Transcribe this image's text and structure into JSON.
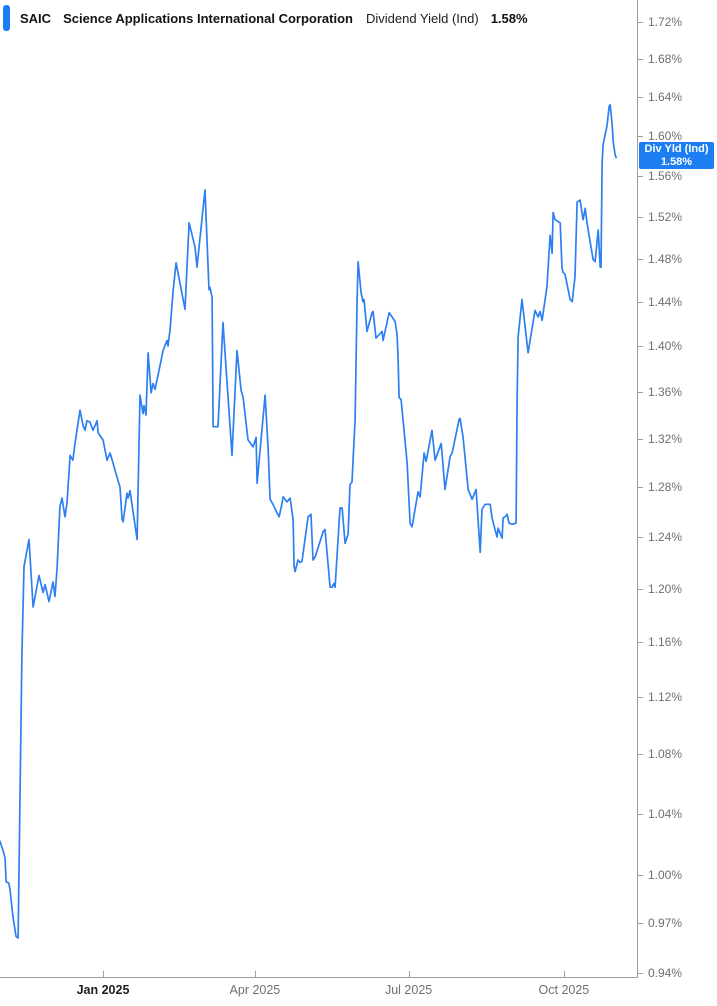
{
  "header": {
    "ticker": "SAIC",
    "company": "Science Applications International Corporation",
    "metric": "Dividend Yield (Ind)",
    "value": "1.58%"
  },
  "badge": {
    "line1": "Div Yld (Ind)",
    "line2": "1.58%",
    "value": 1.58
  },
  "colors": {
    "line": "#2e7ff2",
    "badge": "#1d7ef2",
    "accent_bar": "#1d7ef2",
    "axis": "#9e9e9e",
    "tick_label": "#6f6f6f",
    "emphasis_label": "#1c1e21"
  },
  "chart_data": {
    "type": "line",
    "title": "SAIC Dividend Yield (Ind)",
    "grid": false,
    "legend_position": "none",
    "y_axis": {
      "side": "right",
      "scale": "log",
      "range": [
        0.9375,
        1.7443
      ],
      "unit": "%",
      "tick_values": [
        1.72,
        1.68,
        1.64,
        1.6,
        1.56,
        1.52,
        1.48,
        1.44,
        1.4,
        1.36,
        1.32,
        1.28,
        1.24,
        1.2,
        1.16,
        1.12,
        1.08,
        1.04,
        1.0,
        0.97,
        0.94
      ],
      "tick_labels": [
        "1.72%",
        "1.68%",
        "1.64%",
        "1.60%",
        "1.56%",
        "1.52%",
        "1.48%",
        "1.44%",
        "1.40%",
        "1.36%",
        "1.32%",
        "1.28%",
        "1.24%",
        "1.20%",
        "1.16%",
        "1.12%",
        "1.08%",
        "1.04%",
        "1.00%",
        "0.97%",
        "0.94%"
      ]
    },
    "x_axis": {
      "start_date": "2024-11-01",
      "range_days": [
        0,
        377.3
      ],
      "ticks": [
        {
          "label": "Jan 2025",
          "day": 61,
          "emphasis": true
        },
        {
          "label": "Apr 2025",
          "day": 151,
          "emphasis": false
        },
        {
          "label": "Jul 2025",
          "day": 242,
          "emphasis": false
        },
        {
          "label": "Oct 2025",
          "day": 334,
          "emphasis": false
        }
      ]
    },
    "series": [
      {
        "name": "Div Yld (Ind)",
        "current_value": 1.58,
        "points": [
          [
            0,
            1.022
          ],
          [
            1.8,
            1.016
          ],
          [
            3,
            1.011
          ],
          [
            3.6,
            0.996
          ],
          [
            5.3,
            0.995
          ],
          [
            5.9,
            0.991
          ],
          [
            7.7,
            0.974
          ],
          [
            9.5,
            0.962
          ],
          [
            10.7,
            0.961
          ],
          [
            13,
            1.15
          ],
          [
            14.2,
            1.217
          ],
          [
            17.2,
            1.238
          ],
          [
            19.6,
            1.186
          ],
          [
            23.1,
            1.21
          ],
          [
            25.5,
            1.197
          ],
          [
            26.7,
            1.203
          ],
          [
            29,
            1.19
          ],
          [
            31.4,
            1.205
          ],
          [
            32.6,
            1.194
          ],
          [
            33.8,
            1.216
          ],
          [
            35.5,
            1.264
          ],
          [
            36.7,
            1.271
          ],
          [
            38.5,
            1.256
          ],
          [
            39.7,
            1.267
          ],
          [
            41.5,
            1.306
          ],
          [
            43.2,
            1.302
          ],
          [
            44.4,
            1.316
          ],
          [
            47.4,
            1.344
          ],
          [
            49.2,
            1.331
          ],
          [
            50.4,
            1.327
          ],
          [
            51.5,
            1.335
          ],
          [
            53.3,
            1.334
          ],
          [
            55.1,
            1.327
          ],
          [
            57.5,
            1.335
          ],
          [
            58.1,
            1.325
          ],
          [
            60.4,
            1.32
          ],
          [
            61,
            1.319
          ],
          [
            63.4,
            1.302
          ],
          [
            65.2,
            1.308
          ],
          [
            66.9,
            1.3
          ],
          [
            69.3,
            1.288
          ],
          [
            71.1,
            1.28
          ],
          [
            72.3,
            1.254
          ],
          [
            72.9,
            1.252
          ],
          [
            75.2,
            1.275
          ],
          [
            75.8,
            1.271
          ],
          [
            77,
            1.277
          ],
          [
            81.2,
            1.238
          ],
          [
            82.9,
            1.357
          ],
          [
            84.7,
            1.341
          ],
          [
            85.3,
            1.348
          ],
          [
            86.5,
            1.34
          ],
          [
            87.7,
            1.394
          ],
          [
            89.5,
            1.359
          ],
          [
            90.6,
            1.367
          ],
          [
            91.8,
            1.362
          ],
          [
            94.8,
            1.383
          ],
          [
            96.6,
            1.396
          ],
          [
            98.9,
            1.405
          ],
          [
            99.5,
            1.4
          ],
          [
            100.7,
            1.414
          ],
          [
            102.5,
            1.45
          ],
          [
            104.3,
            1.476
          ],
          [
            109.6,
            1.433
          ],
          [
            112,
            1.514
          ],
          [
            115.5,
            1.491
          ],
          [
            116.7,
            1.472
          ],
          [
            121.4,
            1.546
          ],
          [
            123.8,
            1.451
          ],
          [
            124.4,
            1.453
          ],
          [
            125.6,
            1.444
          ],
          [
            126.2,
            1.33
          ],
          [
            129.1,
            1.33
          ],
          [
            132.1,
            1.421
          ],
          [
            137.4,
            1.306
          ],
          [
            140.4,
            1.396
          ],
          [
            142.8,
            1.361
          ],
          [
            144,
            1.355
          ],
          [
            146.9,
            1.319
          ],
          [
            149.9,
            1.313
          ],
          [
            151.7,
            1.321
          ],
          [
            152.3,
            1.283
          ],
          [
            157,
            1.357
          ],
          [
            158.8,
            1.312
          ],
          [
            160,
            1.27
          ],
          [
            161.7,
            1.266
          ],
          [
            164.1,
            1.259
          ],
          [
            165.3,
            1.256
          ],
          [
            167.1,
            1.267
          ],
          [
            167.7,
            1.272
          ],
          [
            170,
            1.268
          ],
          [
            171.8,
            1.271
          ],
          [
            173.6,
            1.254
          ],
          [
            174.2,
            1.217
          ],
          [
            174.8,
            1.213
          ],
          [
            176.5,
            1.222
          ],
          [
            177.7,
            1.22
          ],
          [
            178.9,
            1.221
          ],
          [
            182.5,
            1.256
          ],
          [
            184.2,
            1.258
          ],
          [
            185.4,
            1.222
          ],
          [
            186.6,
            1.224
          ],
          [
            191.4,
            1.244
          ],
          [
            192.5,
            1.246
          ],
          [
            195.5,
            1.201
          ],
          [
            196.7,
            1.201
          ],
          [
            197.9,
            1.204
          ],
          [
            198.5,
            1.201
          ],
          [
            201.4,
            1.263
          ],
          [
            202.6,
            1.263
          ],
          [
            204.4,
            1.235
          ],
          [
            206.2,
            1.242
          ],
          [
            207.3,
            1.282
          ],
          [
            208.5,
            1.284
          ],
          [
            210.3,
            1.336
          ],
          [
            211.5,
            1.442
          ],
          [
            212.1,
            1.477
          ],
          [
            213.9,
            1.448
          ],
          [
            215,
            1.44
          ],
          [
            215.6,
            1.442
          ],
          [
            217.4,
            1.413
          ],
          [
            220.4,
            1.43
          ],
          [
            221,
            1.431
          ],
          [
            222.7,
            1.407
          ],
          [
            226.3,
            1.413
          ],
          [
            226.9,
            1.405
          ],
          [
            230.5,
            1.43
          ],
          [
            234,
            1.422
          ],
          [
            235.2,
            1.41
          ],
          [
            235.8,
            1.388
          ],
          [
            236.4,
            1.355
          ],
          [
            237.6,
            1.353
          ],
          [
            241.1,
            1.3
          ],
          [
            242.9,
            1.251
          ],
          [
            244.1,
            1.248
          ],
          [
            247.6,
            1.276
          ],
          [
            248.8,
            1.272
          ],
          [
            251.2,
            1.308
          ],
          [
            252.4,
            1.301
          ],
          [
            255.9,
            1.327
          ],
          [
            257.7,
            1.302
          ],
          [
            261.3,
            1.316
          ],
          [
            263.6,
            1.278
          ],
          [
            266.6,
            1.305
          ],
          [
            267.8,
            1.308
          ],
          [
            271.9,
            1.336
          ],
          [
            272.5,
            1.337
          ],
          [
            274.3,
            1.321
          ],
          [
            276.7,
            1.286
          ],
          [
            277.3,
            1.278
          ],
          [
            279.6,
            1.27
          ],
          [
            282,
            1.278
          ],
          [
            284.4,
            1.228
          ],
          [
            285.5,
            1.262
          ],
          [
            287.3,
            1.266
          ],
          [
            290.3,
            1.266
          ],
          [
            291.5,
            1.255
          ],
          [
            293.2,
            1.246
          ],
          [
            294.4,
            1.24
          ],
          [
            295,
            1.247
          ],
          [
            297.4,
            1.239
          ],
          [
            298,
            1.255
          ],
          [
            299.2,
            1.256
          ],
          [
            300.4,
            1.258
          ],
          [
            301.5,
            1.251
          ],
          [
            303.3,
            1.25
          ],
          [
            305.7,
            1.251
          ],
          [
            306.3,
            1.353
          ],
          [
            306.9,
            1.408
          ],
          [
            309.2,
            1.442
          ],
          [
            312.8,
            1.394
          ],
          [
            316.9,
            1.432
          ],
          [
            318.7,
            1.426
          ],
          [
            319.9,
            1.431
          ],
          [
            321.1,
            1.423
          ],
          [
            324,
            1.454
          ],
          [
            325.8,
            1.502
          ],
          [
            327,
            1.485
          ],
          [
            327.6,
            1.524
          ],
          [
            328.8,
            1.517
          ],
          [
            331.8,
            1.514
          ],
          [
            332.9,
            1.471
          ],
          [
            333.5,
            1.467
          ],
          [
            334.7,
            1.465
          ],
          [
            337.7,
            1.442
          ],
          [
            338.9,
            1.44
          ],
          [
            340.6,
            1.463
          ],
          [
            341.8,
            1.534
          ],
          [
            343.6,
            1.536
          ],
          [
            345.4,
            1.517
          ],
          [
            346.6,
            1.528
          ],
          [
            347.7,
            1.514
          ],
          [
            351.3,
            1.479
          ],
          [
            352.5,
            1.477
          ],
          [
            354.3,
            1.507
          ],
          [
            355.5,
            1.472
          ],
          [
            356,
            1.472
          ],
          [
            356.6,
            1.573
          ],
          [
            357.2,
            1.591
          ],
          [
            359.6,
            1.611
          ],
          [
            360.8,
            1.63
          ],
          [
            361.4,
            1.632
          ],
          [
            362.6,
            1.611
          ],
          [
            363.2,
            1.594
          ],
          [
            364.3,
            1.581
          ],
          [
            364.9,
            1.578
          ]
        ]
      }
    ]
  }
}
